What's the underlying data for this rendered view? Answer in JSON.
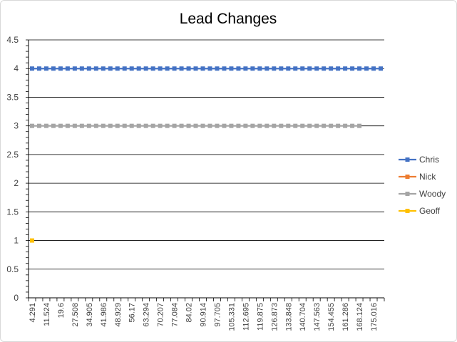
{
  "chart_data": {
    "type": "line",
    "title": "Lead Changes",
    "xlabel": "",
    "ylabel": "",
    "ylim": [
      0,
      4.5
    ],
    "yticks": [
      0,
      0.5,
      1,
      1.5,
      2,
      2.5,
      3,
      3.5,
      4,
      4.5
    ],
    "grid": true,
    "legend": "right",
    "x_tick_labels": [
      "4.291",
      "11.524",
      "19.6",
      "27.508",
      "34.905",
      "41.986",
      "48.929",
      "56.17",
      "63.294",
      "70.207",
      "77.084",
      "84.02",
      "90.914",
      "97.705",
      "105.331",
      "112.695",
      "119.875",
      "126.873",
      "133.848",
      "140.704",
      "147.563",
      "154.455",
      "161.286",
      "168.124",
      "175.016"
    ],
    "n_points": 50,
    "series": [
      {
        "name": "Chris",
        "color": "#4472C4",
        "start": 0,
        "end": 49,
        "value": 4
      },
      {
        "name": "Nick",
        "color": "#ED7D31",
        "start": null,
        "end": null,
        "value": null
      },
      {
        "name": "Woody",
        "color": "#A5A5A5",
        "start": 0,
        "end": 46,
        "value": 3
      },
      {
        "name": "Geoff",
        "color": "#FFC000",
        "start": 0,
        "end": 0,
        "value": 1
      }
    ]
  }
}
